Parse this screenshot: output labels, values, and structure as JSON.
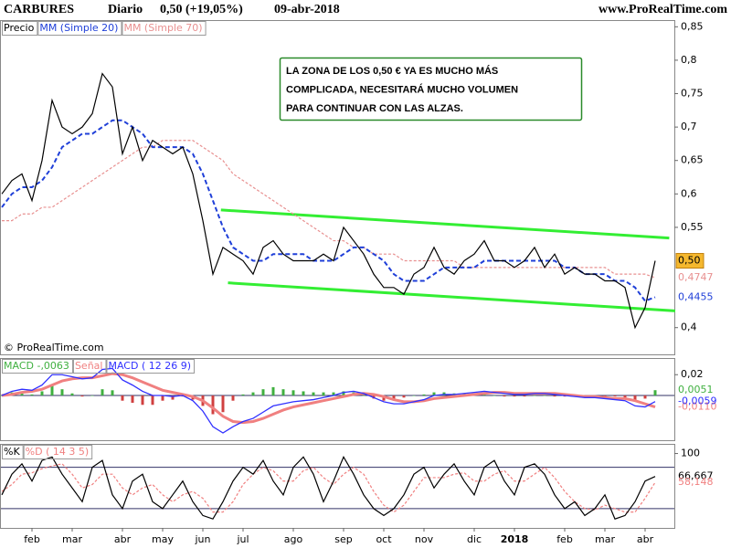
{
  "header": {
    "symbol": "CARBURES",
    "period": "Diario",
    "quote": "0,50 (+19,05%)",
    "date": "09-abr-2018",
    "site": "www.ProRealTime.com",
    "copyright": "© ProRealTime.com"
  },
  "chart_data": [
    {
      "type": "line",
      "series": [
        {
          "name": "Precio",
          "color": "#000000",
          "last_label": "0,50",
          "values": [
            0.6,
            0.62,
            0.63,
            0.59,
            0.65,
            0.74,
            0.7,
            0.69,
            0.7,
            0.72,
            0.78,
            0.76,
            0.66,
            0.7,
            0.65,
            0.68,
            0.67,
            0.66,
            0.67,
            0.63,
            0.56,
            0.48,
            0.52,
            0.51,
            0.5,
            0.48,
            0.52,
            0.53,
            0.51,
            0.5,
            0.5,
            0.5,
            0.51,
            0.5,
            0.55,
            0.53,
            0.51,
            0.48,
            0.46,
            0.46,
            0.45,
            0.48,
            0.49,
            0.52,
            0.49,
            0.48,
            0.5,
            0.51,
            0.53,
            0.5,
            0.5,
            0.49,
            0.5,
            0.52,
            0.49,
            0.51,
            0.48,
            0.49,
            0.48,
            0.48,
            0.47,
            0.47,
            0.46,
            0.4,
            0.43,
            0.5
          ]
        },
        {
          "name": "MM (Simple 20)",
          "color": "#1f3fd8",
          "last_label": "0,4455",
          "values": [
            0.58,
            0.6,
            0.61,
            0.61,
            0.62,
            0.64,
            0.67,
            0.68,
            0.69,
            0.69,
            0.7,
            0.71,
            0.71,
            0.7,
            0.69,
            0.67,
            0.67,
            0.67,
            0.67,
            0.66,
            0.63,
            0.59,
            0.55,
            0.52,
            0.51,
            0.5,
            0.5,
            0.51,
            0.51,
            0.51,
            0.51,
            0.5,
            0.5,
            0.5,
            0.51,
            0.52,
            0.52,
            0.51,
            0.5,
            0.48,
            0.47,
            0.47,
            0.47,
            0.48,
            0.49,
            0.49,
            0.49,
            0.49,
            0.5,
            0.5,
            0.5,
            0.5,
            0.5,
            0.5,
            0.5,
            0.5,
            0.49,
            0.49,
            0.48,
            0.48,
            0.48,
            0.47,
            0.47,
            0.46,
            0.44,
            0.4455
          ]
        },
        {
          "name": "MM (Simple 70)",
          "color": "#e89090",
          "last_label": "0,4747",
          "values": [
            0.56,
            0.56,
            0.57,
            0.57,
            0.58,
            0.58,
            0.59,
            0.6,
            0.61,
            0.62,
            0.63,
            0.64,
            0.65,
            0.66,
            0.67,
            0.67,
            0.68,
            0.68,
            0.68,
            0.68,
            0.67,
            0.66,
            0.65,
            0.63,
            0.62,
            0.61,
            0.6,
            0.59,
            0.58,
            0.57,
            0.56,
            0.55,
            0.54,
            0.53,
            0.53,
            0.52,
            0.52,
            0.51,
            0.51,
            0.51,
            0.5,
            0.5,
            0.5,
            0.5,
            0.5,
            0.5,
            0.49,
            0.49,
            0.49,
            0.49,
            0.49,
            0.49,
            0.49,
            0.49,
            0.49,
            0.49,
            0.49,
            0.49,
            0.49,
            0.49,
            0.49,
            0.48,
            0.48,
            0.48,
            0.48,
            0.4747
          ]
        }
      ],
      "ylim": [
        0.36,
        0.86
      ],
      "yticks": [
        {
          "value": 0.85,
          "label": "0,85"
        },
        {
          "value": 0.8,
          "label": "0,8"
        },
        {
          "value": 0.75,
          "label": "0,75"
        },
        {
          "value": 0.7,
          "label": "0,7"
        },
        {
          "value": 0.65,
          "label": "0,65"
        },
        {
          "value": 0.6,
          "label": "0,6"
        },
        {
          "value": 0.55,
          "label": "0,55"
        },
        {
          "value": 0.4,
          "label": "0,4"
        }
      ],
      "trendlines": [
        {
          "color": "#33ee33",
          "x": [
            21.8,
            66.4
          ],
          "y": [
            0.576,
            0.534
          ]
        },
        {
          "color": "#33ee33",
          "x": [
            22.5,
            67
          ],
          "y": [
            0.467,
            0.425
          ]
        }
      ],
      "annotation": [
        "LA ZONA DE LOS 0,50 € YA ES MUCHO MÁS",
        "COMPLICADA, NECESITARÁ MUCHO VOLUMEN",
        "PARA CONTINUAR CON LAS ALZAS."
      ]
    },
    {
      "type": "macd",
      "series": [
        {
          "name": "MACD -,0063",
          "kind": "histogram",
          "color": "#40b040",
          "negative_color": "#d04040",
          "last_label": "0,0051",
          "values": [
            0,
            0.003,
            0.003,
            0.001,
            0.004,
            0.01,
            0.006,
            0.002,
            -0.001,
            0,
            0.006,
            0.005,
            -0.005,
            -0.007,
            -0.009,
            -0.009,
            -0.005,
            -0.004,
            -0.001,
            -0.004,
            -0.01,
            -0.018,
            -0.016,
            -0.005,
            0.001,
            0.003,
            0.006,
            0.008,
            0.006,
            0.005,
            0.004,
            0.003,
            0.003,
            0.003,
            0.004,
            0.003,
            0,
            -0.003,
            -0.005,
            -0.004,
            -0.002,
            0,
            0.001,
            0.003,
            0.003,
            0.002,
            0.002,
            0.002,
            0.002,
            0,
            -0.001,
            -0.001,
            -0.001,
            0,
            0,
            -0.001,
            -0.001,
            -0.001,
            -0.001,
            -0.001,
            -0.001,
            -0.001,
            -0.002,
            -0.005,
            -0.003,
            0.0051
          ]
        },
        {
          "name": "Señal",
          "kind": "line",
          "color": "#f08080",
          "last_label": "-0,0110",
          "values": [
            0,
            0.001,
            0.003,
            0.004,
            0.006,
            0.01,
            0.014,
            0.016,
            0.017,
            0.017,
            0.019,
            0.021,
            0.02,
            0.017,
            0.013,
            0.009,
            0.005,
            0.003,
            0.001,
            -0.001,
            -0.005,
            -0.012,
            -0.02,
            -0.025,
            -0.026,
            -0.025,
            -0.022,
            -0.018,
            -0.014,
            -0.011,
            -0.009,
            -0.007,
            -0.005,
            -0.003,
            -0.001,
            0.001,
            0.002,
            0.001,
            -0.001,
            -0.004,
            -0.006,
            -0.006,
            -0.005,
            -0.003,
            -0.002,
            -0.001,
            0,
            0.001,
            0.002,
            0.003,
            0.003,
            0.002,
            0.002,
            0.002,
            0.002,
            0.002,
            0.001,
            0,
            -0.001,
            -0.001,
            -0.002,
            -0.003,
            -0.003,
            -0.005,
            -0.008,
            -0.011
          ]
        },
        {
          "name": "MACD ( 12 26 9)",
          "kind": "line",
          "color": "#3030ff",
          "last_label": "-0,0059",
          "values": [
            0,
            0.004,
            0.006,
            0.005,
            0.01,
            0.02,
            0.02,
            0.018,
            0.016,
            0.017,
            0.025,
            0.026,
            0.015,
            0.01,
            0.004,
            0,
            0,
            -0.001,
            0,
            -0.005,
            -0.015,
            -0.03,
            -0.036,
            -0.03,
            -0.025,
            -0.022,
            -0.016,
            -0.01,
            -0.008,
            -0.006,
            -0.005,
            -0.004,
            -0.002,
            0,
            0.003,
            0.004,
            0.002,
            -0.002,
            -0.006,
            -0.008,
            -0.008,
            -0.006,
            -0.004,
            0,
            0.001,
            0.001,
            0.002,
            0.003,
            0.004,
            0.003,
            0.002,
            0.001,
            0.001,
            0.002,
            0.002,
            0.001,
            0,
            -0.001,
            -0.002,
            -0.002,
            -0.003,
            -0.004,
            -0.005,
            -0.01,
            -0.011,
            -0.0059
          ]
        }
      ],
      "ylim": [
        -0.043,
        0.036
      ],
      "yticks": [
        {
          "value": 0.02,
          "label": "0,02"
        }
      ]
    },
    {
      "type": "line",
      "series": [
        {
          "name": "%K",
          "color": "#000000",
          "last_label": "66,667",
          "values": [
            40,
            70,
            85,
            60,
            90,
            95,
            70,
            50,
            30,
            80,
            90,
            40,
            20,
            60,
            70,
            30,
            20,
            40,
            60,
            30,
            10,
            5,
            30,
            60,
            80,
            70,
            90,
            60,
            40,
            80,
            95,
            70,
            30,
            60,
            95,
            70,
            40,
            20,
            10,
            20,
            40,
            70,
            80,
            50,
            70,
            85,
            60,
            40,
            80,
            90,
            60,
            40,
            80,
            85,
            70,
            40,
            20,
            30,
            10,
            20,
            40,
            5,
            10,
            30,
            60,
            66.667
          ]
        },
        {
          "name": "%D ( 14 3 5)",
          "color": "#f08080",
          "last_label": "58,148",
          "values": [
            45,
            55,
            70,
            72,
            78,
            82,
            85,
            70,
            50,
            55,
            70,
            70,
            50,
            40,
            50,
            55,
            40,
            30,
            40,
            45,
            35,
            15,
            15,
            30,
            55,
            70,
            80,
            75,
            60,
            60,
            75,
            80,
            65,
            55,
            70,
            80,
            70,
            45,
            25,
            15,
            25,
            45,
            65,
            65,
            65,
            70,
            72,
            60,
            60,
            70,
            75,
            60,
            60,
            70,
            80,
            65,
            45,
            30,
            20,
            18,
            25,
            20,
            15,
            15,
            35,
            58.148
          ]
        }
      ],
      "ylim": [
        -8,
        114
      ],
      "yticks": [
        100
      ],
      "hlines": [
        80,
        20
      ],
      "categories": [
        null,
        null,
        null,
        "feb",
        null,
        null,
        null,
        "mar",
        null,
        null,
        null,
        null,
        "abr",
        null,
        null,
        null,
        "may",
        null,
        null,
        null,
        "jun",
        null,
        null,
        null,
        "jul",
        null,
        null,
        null,
        null,
        "ago",
        null,
        null,
        null,
        null,
        "sep",
        null,
        null,
        null,
        "oct",
        null,
        null,
        null,
        "nov",
        null,
        null,
        null,
        null,
        "dic",
        null,
        null,
        null,
        "2018",
        null,
        null,
        null,
        null,
        "feb",
        null,
        null,
        null,
        "mar",
        null,
        null,
        null,
        "abr",
        null
      ]
    }
  ]
}
